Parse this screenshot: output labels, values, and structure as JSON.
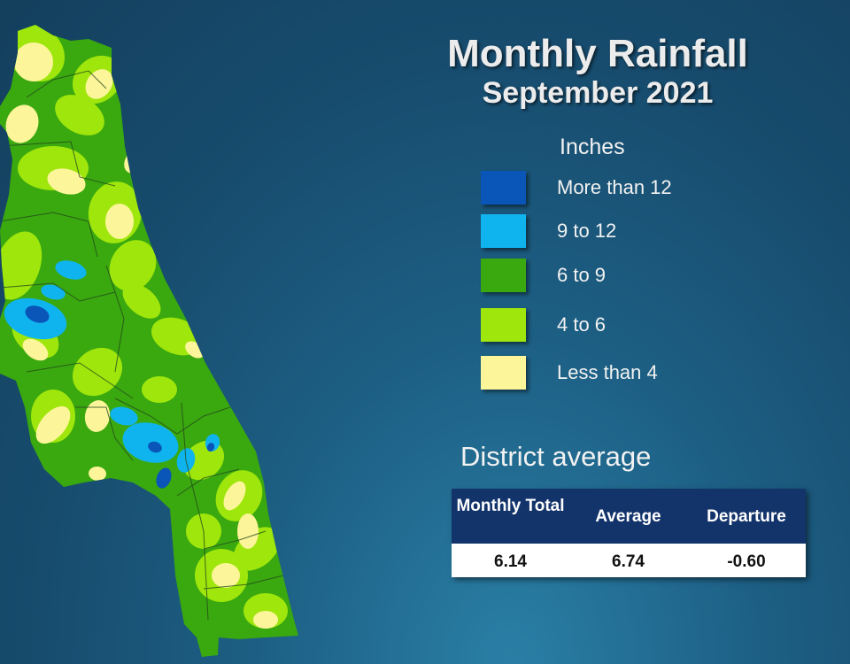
{
  "title": "Monthly Rainfall",
  "subtitle": "September 2021",
  "legend": {
    "title": "Inches",
    "items": [
      {
        "label": "More than 12",
        "color": "#0a55b8"
      },
      {
        "label": "9 to 12",
        "color": "#0fb4ee"
      },
      {
        "label": "6 to 9",
        "color": "#3aa80f"
      },
      {
        "label": "4 to 6",
        "color": "#9ee60c"
      },
      {
        "label": "Less than 4",
        "color": "#fdf59a"
      }
    ]
  },
  "district_average": {
    "heading": "District average",
    "columns": [
      "Monthly Total",
      "Average",
      "Departure"
    ],
    "values": [
      "6.14",
      "6.74",
      "-0.60"
    ]
  },
  "map": {
    "colors": {
      "background_zone": "#3aa80f",
      "low": "#fdf59a",
      "mid": "#9ee60c",
      "high": "#0fb4ee",
      "very_high": "#0a55b8",
      "county_lines": "#234a1c"
    }
  }
}
